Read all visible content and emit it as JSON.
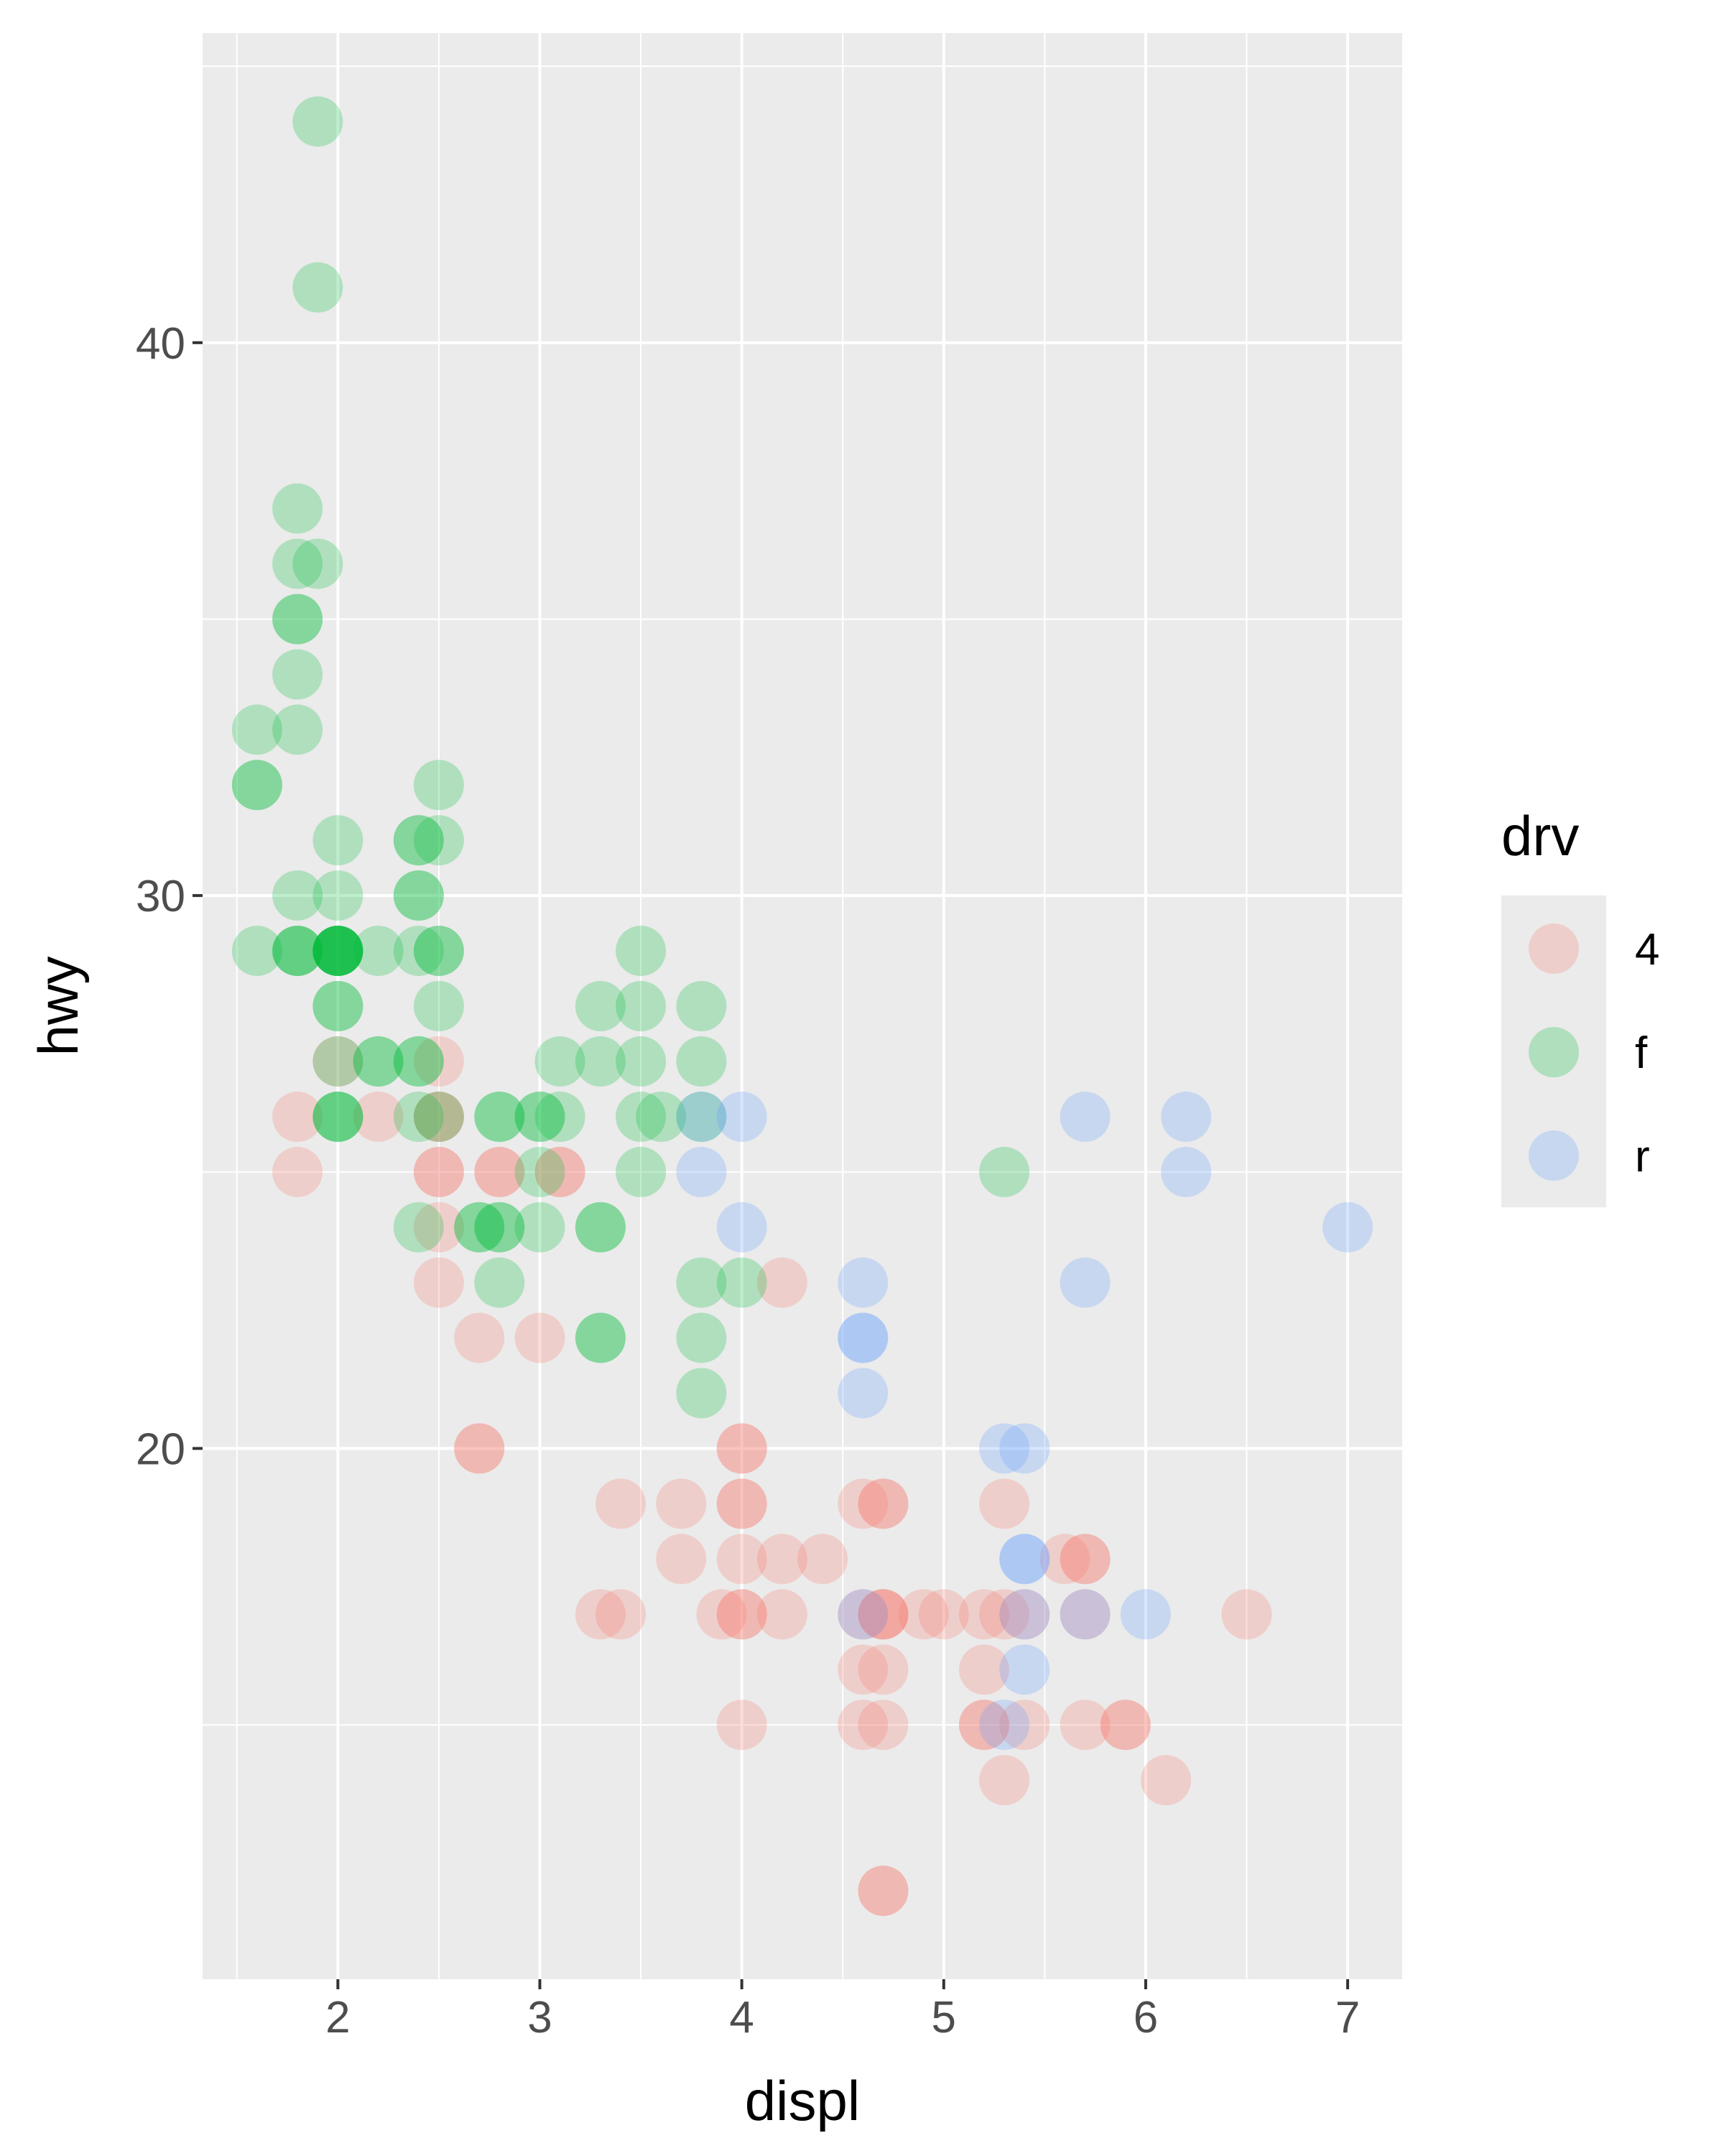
{
  "chart_data": {
    "type": "scatter",
    "title": "",
    "xlabel": "displ",
    "ylabel": "hwy",
    "xlim": [
      1.33,
      7.27
    ],
    "ylim": [
      10.4,
      45.6
    ],
    "x_ticks": [
      2,
      3,
      4,
      5,
      6,
      7
    ],
    "x_tick_labels": [
      "2",
      "3",
      "4",
      "5",
      "6",
      "7"
    ],
    "y_ticks": [
      20,
      30,
      40
    ],
    "y_tick_labels": [
      "20",
      "30",
      "40"
    ],
    "grid": true,
    "panel_background": "#ebebeb",
    "gridline_color": "#ffffff",
    "point_alpha": 0.25,
    "legend": {
      "title": "drv",
      "position": "right",
      "entries": [
        {
          "label": "4",
          "color": "#f8766d"
        },
        {
          "label": "f",
          "color": "#00ba38"
        },
        {
          "label": "r",
          "color": "#619cff"
        }
      ]
    },
    "series": [
      {
        "name": "4",
        "color": "#f8766d",
        "points": [
          [
            1.8,
            26
          ],
          [
            1.8,
            25
          ],
          [
            2.0,
            27
          ],
          [
            2.2,
            26
          ],
          [
            2.5,
            27
          ],
          [
            2.5,
            26
          ],
          [
            2.5,
            26
          ],
          [
            2.5,
            25
          ],
          [
            2.5,
            25
          ],
          [
            2.5,
            24
          ],
          [
            2.5,
            23
          ],
          [
            2.7,
            22
          ],
          [
            2.7,
            20
          ],
          [
            2.7,
            20
          ],
          [
            2.8,
            25
          ],
          [
            2.8,
            25
          ],
          [
            3.0,
            22
          ],
          [
            3.1,
            25
          ],
          [
            3.1,
            25
          ],
          [
            3.3,
            17
          ],
          [
            3.4,
            17
          ],
          [
            3.4,
            19
          ],
          [
            3.7,
            19
          ],
          [
            3.7,
            18
          ],
          [
            3.9,
            17
          ],
          [
            4.0,
            20
          ],
          [
            4.0,
            20
          ],
          [
            4.0,
            19
          ],
          [
            4.0,
            19
          ],
          [
            4.0,
            18
          ],
          [
            4.0,
            17
          ],
          [
            4.0,
            17
          ],
          [
            4.0,
            15
          ],
          [
            4.2,
            23
          ],
          [
            4.2,
            18
          ],
          [
            4.2,
            17
          ],
          [
            4.4,
            18
          ],
          [
            4.6,
            19
          ],
          [
            4.6,
            17
          ],
          [
            4.6,
            16
          ],
          [
            4.6,
            15
          ],
          [
            4.7,
            19
          ],
          [
            4.7,
            19
          ],
          [
            4.7,
            17
          ],
          [
            4.7,
            17
          ],
          [
            4.7,
            17
          ],
          [
            4.7,
            16
          ],
          [
            4.7,
            15
          ],
          [
            4.7,
            12
          ],
          [
            4.7,
            12
          ],
          [
            4.9,
            17
          ],
          [
            5.0,
            17
          ],
          [
            5.2,
            17
          ],
          [
            5.2,
            16
          ],
          [
            5.2,
            15
          ],
          [
            5.2,
            15
          ],
          [
            5.3,
            19
          ],
          [
            5.3,
            17
          ],
          [
            5.3,
            14
          ],
          [
            5.4,
            17
          ],
          [
            5.4,
            15
          ],
          [
            5.6,
            18
          ],
          [
            5.7,
            18
          ],
          [
            5.7,
            18
          ],
          [
            5.7,
            17
          ],
          [
            5.7,
            15
          ],
          [
            5.9,
            15
          ],
          [
            5.9,
            15
          ],
          [
            6.1,
            14
          ],
          [
            6.5,
            17
          ]
        ]
      },
      {
        "name": "f",
        "color": "#00ba38",
        "points": [
          [
            1.6,
            33
          ],
          [
            1.6,
            32
          ],
          [
            1.6,
            32
          ],
          [
            1.6,
            29
          ],
          [
            1.8,
            30
          ],
          [
            1.8,
            29
          ],
          [
            1.8,
            29
          ],
          [
            1.8,
            29
          ],
          [
            1.8,
            33
          ],
          [
            1.8,
            34
          ],
          [
            1.8,
            35
          ],
          [
            1.8,
            35
          ],
          [
            1.8,
            36
          ],
          [
            1.8,
            37
          ],
          [
            1.9,
            36
          ],
          [
            1.9,
            44
          ],
          [
            1.9,
            41
          ],
          [
            2.0,
            31
          ],
          [
            2.0,
            30
          ],
          [
            2.0,
            29
          ],
          [
            2.0,
            29
          ],
          [
            2.0,
            29
          ],
          [
            2.0,
            29
          ],
          [
            2.0,
            29
          ],
          [
            2.0,
            29
          ],
          [
            2.0,
            29
          ],
          [
            2.0,
            28
          ],
          [
            2.0,
            28
          ],
          [
            2.0,
            27
          ],
          [
            2.0,
            26
          ],
          [
            2.0,
            26
          ],
          [
            2.0,
            26
          ],
          [
            2.2,
            29
          ],
          [
            2.2,
            27
          ],
          [
            2.2,
            27
          ],
          [
            2.4,
            31
          ],
          [
            2.4,
            31
          ],
          [
            2.4,
            30
          ],
          [
            2.4,
            30
          ],
          [
            2.4,
            29
          ],
          [
            2.4,
            27
          ],
          [
            2.4,
            27
          ],
          [
            2.4,
            26
          ],
          [
            2.4,
            24
          ],
          [
            2.5,
            32
          ],
          [
            2.5,
            31
          ],
          [
            2.5,
            29
          ],
          [
            2.5,
            29
          ],
          [
            2.5,
            28
          ],
          [
            2.5,
            26
          ],
          [
            2.7,
            24
          ],
          [
            2.7,
            24
          ],
          [
            2.8,
            26
          ],
          [
            2.8,
            26
          ],
          [
            2.8,
            24
          ],
          [
            2.8,
            23
          ],
          [
            2.8,
            24
          ],
          [
            3.0,
            26
          ],
          [
            3.0,
            26
          ],
          [
            3.0,
            25
          ],
          [
            3.0,
            24
          ],
          [
            3.1,
            26
          ],
          [
            3.1,
            27
          ],
          [
            3.3,
            28
          ],
          [
            3.3,
            27
          ],
          [
            3.3,
            24
          ],
          [
            3.3,
            24
          ],
          [
            3.3,
            22
          ],
          [
            3.3,
            22
          ],
          [
            3.5,
            29
          ],
          [
            3.5,
            28
          ],
          [
            3.5,
            27
          ],
          [
            3.5,
            26
          ],
          [
            3.5,
            25
          ],
          [
            3.6,
            26
          ],
          [
            3.8,
            28
          ],
          [
            3.8,
            27
          ],
          [
            3.8,
            26
          ],
          [
            3.8,
            23
          ],
          [
            3.8,
            22
          ],
          [
            3.8,
            21
          ],
          [
            4.0,
            23
          ],
          [
            5.3,
            25
          ]
        ]
      },
      {
        "name": "r",
        "color": "#619cff",
        "points": [
          [
            3.8,
            26
          ],
          [
            3.8,
            25
          ],
          [
            4.0,
            26
          ],
          [
            4.0,
            24
          ],
          [
            4.6,
            23
          ],
          [
            4.6,
            22
          ],
          [
            4.6,
            22
          ],
          [
            4.6,
            21
          ],
          [
            4.6,
            17
          ],
          [
            5.3,
            20
          ],
          [
            5.3,
            15
          ],
          [
            5.4,
            20
          ],
          [
            5.4,
            18
          ],
          [
            5.4,
            18
          ],
          [
            5.4,
            17
          ],
          [
            5.4,
            16
          ],
          [
            5.7,
            26
          ],
          [
            5.7,
            23
          ],
          [
            5.7,
            17
          ],
          [
            6.0,
            17
          ],
          [
            6.2,
            26
          ],
          [
            6.2,
            25
          ],
          [
            7.0,
            24
          ]
        ]
      }
    ]
  }
}
